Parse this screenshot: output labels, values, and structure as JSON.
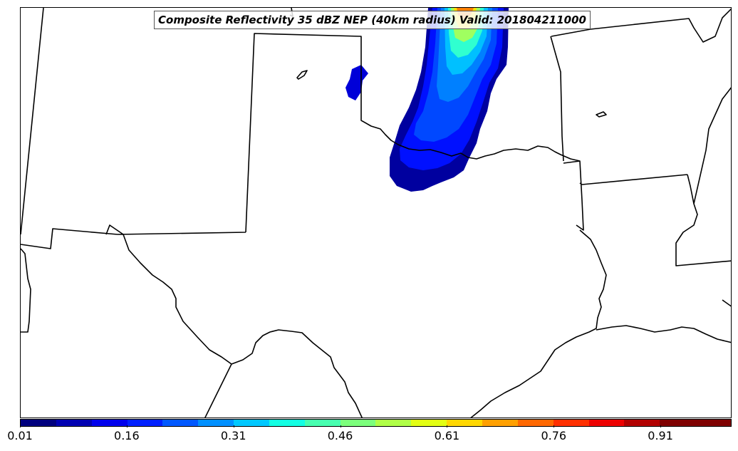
{
  "title": "Composite Reflectivity 35 dBZ NEP (40km radius) Valid: 201804211000",
  "colorbar": {
    "colors": [
      "#00007f",
      "#0000b2",
      "#0000ed",
      "#0020ff",
      "#0058ff",
      "#0090ff",
      "#00c8ff",
      "#13ffe3",
      "#47ffb0",
      "#7cff7c",
      "#b0ff47",
      "#e3ff13",
      "#ffd700",
      "#ffa000",
      "#ff6800",
      "#ff3000",
      "#ed0000",
      "#b20000",
      "#7f0000",
      "#7f0000"
    ],
    "ticks": [
      {
        "value": 0.01,
        "label": "0.01"
      },
      {
        "value": 0.16,
        "label": "0.16"
      },
      {
        "value": 0.31,
        "label": "0.31"
      },
      {
        "value": 0.46,
        "label": "0.46"
      },
      {
        "value": 0.61,
        "label": "0.61"
      },
      {
        "value": 0.76,
        "label": "0.76"
      },
      {
        "value": 0.91,
        "label": "0.91"
      }
    ],
    "min": 0.01,
    "max": 1.01
  },
  "probability_field": {
    "shades": [
      "#00009f",
      "#0000d8",
      "#0010ff",
      "#0048ff",
      "#0080ff",
      "#00c0ff",
      "#30ffd0",
      "#a0ff60",
      "#ffe000",
      "#ff8000"
    ]
  }
}
